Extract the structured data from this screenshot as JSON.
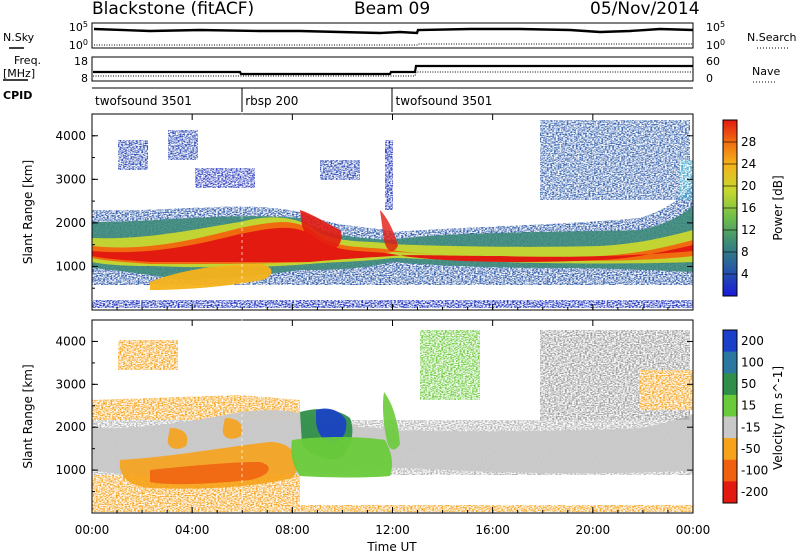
{
  "header": {
    "station": "Blackstone (fitACF)",
    "beam": "Beam 09",
    "date": "05/Nov/2014"
  },
  "side_labels": {
    "nsky": "N.Sky",
    "nsearch": "N.Search",
    "freq": "Freq.",
    "freq_unit": "[MHz]",
    "nave": "Nave",
    "cpid": "CPID"
  },
  "noise_panel": {
    "left_ticks": [
      "10^5",
      "10^0"
    ],
    "right_ticks": [
      "10^5",
      "10^0"
    ]
  },
  "freq_panel": {
    "left_ticks": [
      "18",
      "8"
    ],
    "right_ticks": [
      "60",
      "0"
    ]
  },
  "cpid_segments": [
    {
      "label": "twofsound 3501",
      "start_hour": 0,
      "end_hour": 6
    },
    {
      "label": "rbsp 200",
      "start_hour": 6,
      "end_hour": 12
    },
    {
      "label": "twofsound 3501",
      "start_hour": 12,
      "end_hour": 24
    }
  ],
  "x_axis": {
    "label": "Time UT",
    "ticks": [
      "00:00",
      "04:00",
      "08:00",
      "12:00",
      "16:00",
      "20:00",
      "00:00"
    ]
  },
  "chart_data": [
    {
      "type": "heatmap",
      "panel": "power",
      "ylabel": "Slant Range [km]",
      "yticks": [
        "1000",
        "2000",
        "3000",
        "4000"
      ],
      "ylim": [
        0,
        4500
      ],
      "xlim_hours": [
        0,
        24
      ],
      "colorbar_label": "Power [dB]",
      "colorbar_ticks": [
        "4",
        "8",
        "12",
        "16",
        "20",
        "24",
        "28"
      ],
      "colors": [
        "#1a1ad8",
        "#2558a6",
        "#3a8a78",
        "#6fbf4a",
        "#c8d82e",
        "#f5b21a",
        "#f06a10",
        "#e31a10"
      ],
      "main_echo_band_range_km": [
        [
          0,
          1150
        ],
        [
          2,
          1300
        ],
        [
          4,
          1500
        ],
        [
          6,
          1750
        ],
        [
          8,
          1600
        ],
        [
          10,
          1400
        ],
        [
          12,
          1200
        ],
        [
          14,
          1250
        ],
        [
          16,
          1300
        ],
        [
          18,
          1300
        ],
        [
          20,
          1250
        ],
        [
          22,
          1350
        ],
        [
          24,
          1500
        ]
      ]
    },
    {
      "type": "heatmap",
      "panel": "velocity",
      "ylabel": "Slant Range [km]",
      "yticks": [
        "1000",
        "2000",
        "3000",
        "4000"
      ],
      "ylim": [
        0,
        4500
      ],
      "xlim_hours": [
        0,
        24
      ],
      "colorbar_label": "Velocity [m s^-1]",
      "colorbar_ticks": [
        "200",
        "100",
        "50",
        "15",
        "-15",
        "-50",
        "-100",
        "-200"
      ],
      "colors": [
        "#1a3fc8",
        "#2a77a0",
        "#2f8f4a",
        "#6acb3a",
        "#c8c8c8",
        "#f6a21a",
        "#f06010",
        "#e31a10"
      ]
    }
  ]
}
